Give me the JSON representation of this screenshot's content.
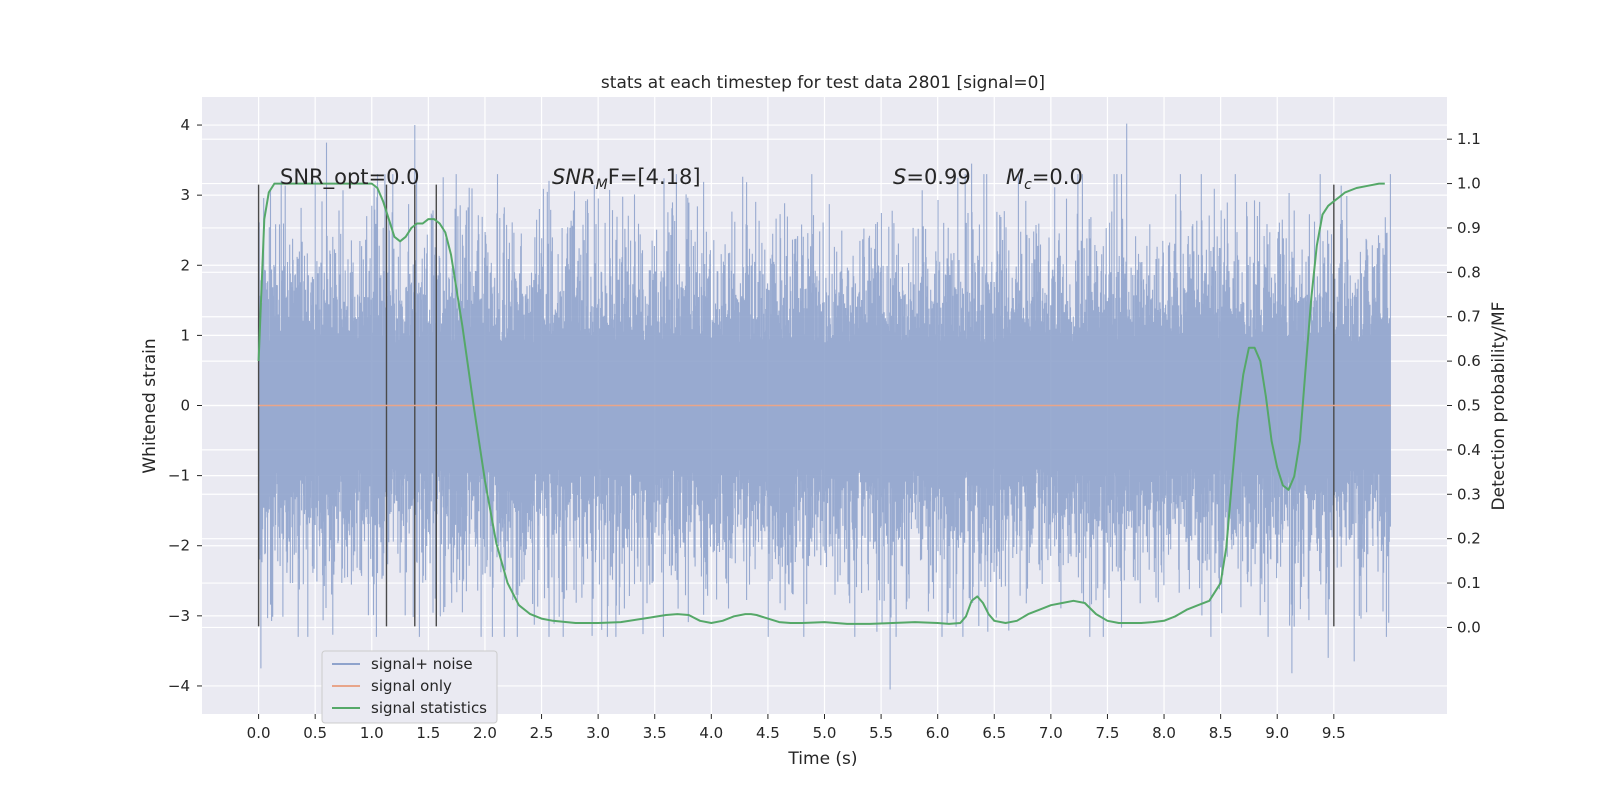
{
  "chart_data": {
    "type": "line",
    "title": "stats at each timestep for test data 2801 [signal=0]",
    "xlabel": "Time (s)",
    "ylabel": "Whitened strain",
    "ylabel_right": "Detection probability/MF",
    "xlim": [
      -0.5,
      10.5
    ],
    "ylim": [
      -4.4,
      4.4
    ],
    "ylim_right": [
      -0.195,
      1.195
    ],
    "x_ticks": [
      "0.0",
      "0.5",
      "1.0",
      "1.5",
      "2.0",
      "2.5",
      "3.0",
      "3.5",
      "4.0",
      "4.5",
      "5.0",
      "5.5",
      "6.0",
      "6.5",
      "7.0",
      "7.5",
      "8.0",
      "8.5",
      "9.0",
      "9.5"
    ],
    "y_ticks": [
      "4",
      "3",
      "2",
      "1",
      "0",
      "−1",
      "−2",
      "−3",
      "−4"
    ],
    "y_ticks_right": [
      "1.1",
      "1.0",
      "0.9",
      "0.8",
      "0.7",
      "0.6",
      "0.5",
      "0.4",
      "0.3",
      "0.2",
      "0.1",
      "0.0"
    ],
    "grid": true,
    "legend_position": "lower-left",
    "annotations": {
      "snr_opt": "SNR_opt=0.0",
      "snr_mf_base": "SNR",
      "snr_mf_sub": "M",
      "snr_mf_tail": "F=[4.18]",
      "s_var": "S",
      "s_val": "=0.99",
      "mc_var": "M",
      "mc_sub": "c",
      "mc_val": "=0.0"
    },
    "series": [
      {
        "name": "signal+ noise",
        "color": "#8fa3cc",
        "x_range": [
          0.0,
          10.0
        ],
        "envelope_p95": 1.8,
        "notable_extremes": [
          [
            0.6,
            3.75
          ],
          [
            1.38,
            4.0
          ],
          [
            6.3,
            3.45
          ],
          [
            7.67,
            4.02
          ],
          [
            0.02,
            -3.75
          ],
          [
            5.58,
            -4.05
          ],
          [
            9.13,
            -3.82
          ],
          [
            9.45,
            -3.6
          ],
          [
            9.68,
            -3.65
          ]
        ]
      },
      {
        "name": "signal only",
        "color": "#e8a58a",
        "x": [
          0.0,
          10.0
        ],
        "y": [
          0.0,
          0.0
        ]
      },
      {
        "name": "signal statistics",
        "color": "#55a868",
        "axis": "right",
        "x": [
          0.0,
          0.05,
          0.09,
          0.14,
          0.2,
          0.3,
          0.5,
          0.7,
          0.9,
          1.0,
          1.05,
          1.1,
          1.15,
          1.2,
          1.25,
          1.3,
          1.35,
          1.4,
          1.45,
          1.5,
          1.55,
          1.6,
          1.65,
          1.7,
          1.8,
          1.9,
          2.0,
          2.1,
          2.2,
          2.3,
          2.4,
          2.5,
          2.6,
          2.8,
          3.0,
          3.2,
          3.4,
          3.6,
          3.7,
          3.8,
          3.9,
          4.0,
          4.1,
          4.2,
          4.3,
          4.35,
          4.4,
          4.5,
          4.6,
          4.7,
          4.8,
          5.0,
          5.2,
          5.4,
          5.6,
          5.8,
          6.0,
          6.1,
          6.2,
          6.25,
          6.3,
          6.35,
          6.4,
          6.45,
          6.5,
          6.6,
          6.7,
          6.8,
          6.9,
          7.0,
          7.1,
          7.2,
          7.3,
          7.4,
          7.5,
          7.6,
          7.7,
          7.8,
          7.9,
          8.0,
          8.1,
          8.2,
          8.3,
          8.4,
          8.5,
          8.55,
          8.6,
          8.65,
          8.7,
          8.75,
          8.8,
          8.85,
          8.9,
          8.95,
          9.0,
          9.05,
          9.1,
          9.15,
          9.2,
          9.25,
          9.3,
          9.35,
          9.4,
          9.45,
          9.5,
          9.55,
          9.6,
          9.7,
          9.8,
          9.9,
          9.95
        ],
        "y": [
          0.6,
          0.92,
          0.98,
          1.0,
          1.0,
          1.0,
          1.0,
          1.0,
          1.0,
          1.0,
          0.99,
          0.96,
          0.92,
          0.88,
          0.87,
          0.88,
          0.9,
          0.91,
          0.91,
          0.92,
          0.92,
          0.91,
          0.89,
          0.84,
          0.68,
          0.5,
          0.33,
          0.19,
          0.1,
          0.05,
          0.03,
          0.02,
          0.015,
          0.01,
          0.01,
          0.012,
          0.02,
          0.028,
          0.03,
          0.028,
          0.015,
          0.01,
          0.015,
          0.025,
          0.03,
          0.03,
          0.028,
          0.02,
          0.012,
          0.01,
          0.01,
          0.012,
          0.008,
          0.008,
          0.01,
          0.012,
          0.01,
          0.008,
          0.01,
          0.025,
          0.06,
          0.07,
          0.055,
          0.03,
          0.015,
          0.01,
          0.015,
          0.03,
          0.04,
          0.05,
          0.055,
          0.06,
          0.055,
          0.03,
          0.015,
          0.01,
          0.01,
          0.01,
          0.012,
          0.015,
          0.025,
          0.04,
          0.05,
          0.06,
          0.1,
          0.18,
          0.33,
          0.47,
          0.57,
          0.63,
          0.63,
          0.6,
          0.52,
          0.42,
          0.36,
          0.32,
          0.31,
          0.34,
          0.42,
          0.58,
          0.74,
          0.86,
          0.93,
          0.95,
          0.96,
          0.97,
          0.98,
          0.99,
          0.995,
          1.0,
          1.0
        ]
      }
    ],
    "vlines": [
      0.0,
      1.13,
      1.38,
      1.57,
      9.5
    ],
    "vline_range": [
      -3.15,
      3.15
    ]
  }
}
